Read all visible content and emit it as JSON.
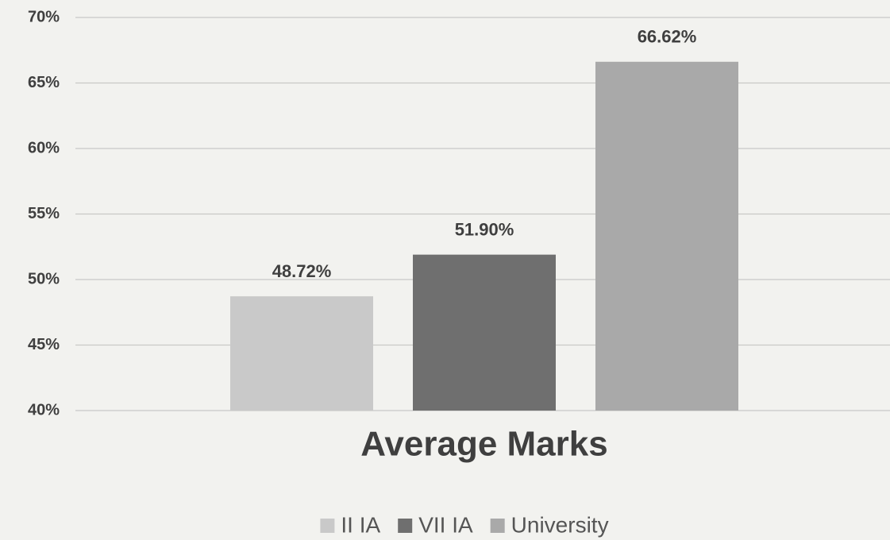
{
  "chart_data": {
    "type": "bar",
    "categories": [
      "Average Marks"
    ],
    "series": [
      {
        "name": "II IA",
        "color": "#c9c9c9",
        "values": [
          48.72
        ],
        "value_labels": [
          "48.72%"
        ]
      },
      {
        "name": "VII IA",
        "color": "#6f6f6f",
        "values": [
          51.9
        ],
        "value_labels": [
          "51.90%"
        ]
      },
      {
        "name": "University",
        "color": "#a9a9a9",
        "values": [
          66.62
        ],
        "value_labels": [
          "66.62%"
        ]
      }
    ],
    "ylim": [
      40,
      70
    ],
    "yticks": [
      {
        "value": 40,
        "label": "40%"
      },
      {
        "value": 45,
        "label": "45%"
      },
      {
        "value": 50,
        "label": "50%"
      },
      {
        "value": 55,
        "label": "55%"
      },
      {
        "value": 60,
        "label": "60%"
      },
      {
        "value": 65,
        "label": "65%"
      },
      {
        "value": 70,
        "label": "70%"
      }
    ],
    "grid": true,
    "legend": "bottom"
  }
}
